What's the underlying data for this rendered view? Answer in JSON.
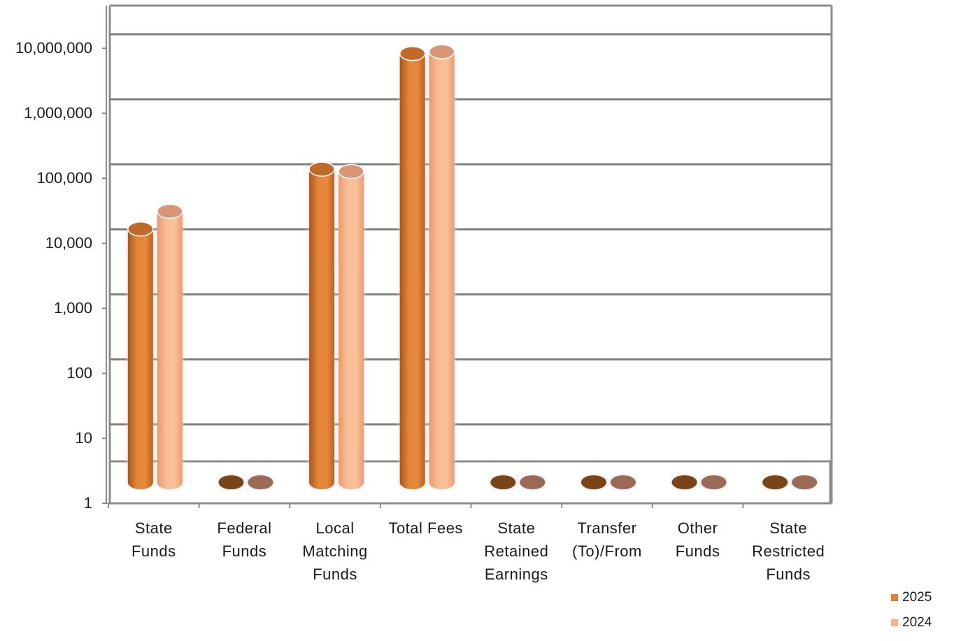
{
  "chart_data": {
    "type": "bar",
    "y_scale": "log",
    "ylim": [
      1,
      10000000
    ],
    "yticks": [
      "1",
      "10",
      "100",
      "1,000",
      "10,000",
      "100,000",
      "1,000,000",
      "10,000,000"
    ],
    "grid": true,
    "legend_position": "bottom-right",
    "categories": [
      [
        "State",
        "Funds"
      ],
      [
        "Federal",
        "Funds"
      ],
      [
        "Local",
        "Matching",
        "Funds"
      ],
      [
        "Total Fees"
      ],
      [
        "State",
        "Retained",
        "Earnings"
      ],
      [
        "Transfer",
        "(To)/From"
      ],
      [
        "Other",
        "Funds"
      ],
      [
        "State",
        "Restricted",
        "Funds"
      ]
    ],
    "series": [
      {
        "name": "2025",
        "color": "#e07f34",
        "values": [
          15000,
          0,
          125000,
          7500000,
          0,
          0,
          0,
          0
        ]
      },
      {
        "name": "2024",
        "color": "#f6b38b",
        "values": [
          28000,
          0,
          115000,
          8000000,
          0,
          0,
          0,
          0
        ]
      }
    ]
  }
}
